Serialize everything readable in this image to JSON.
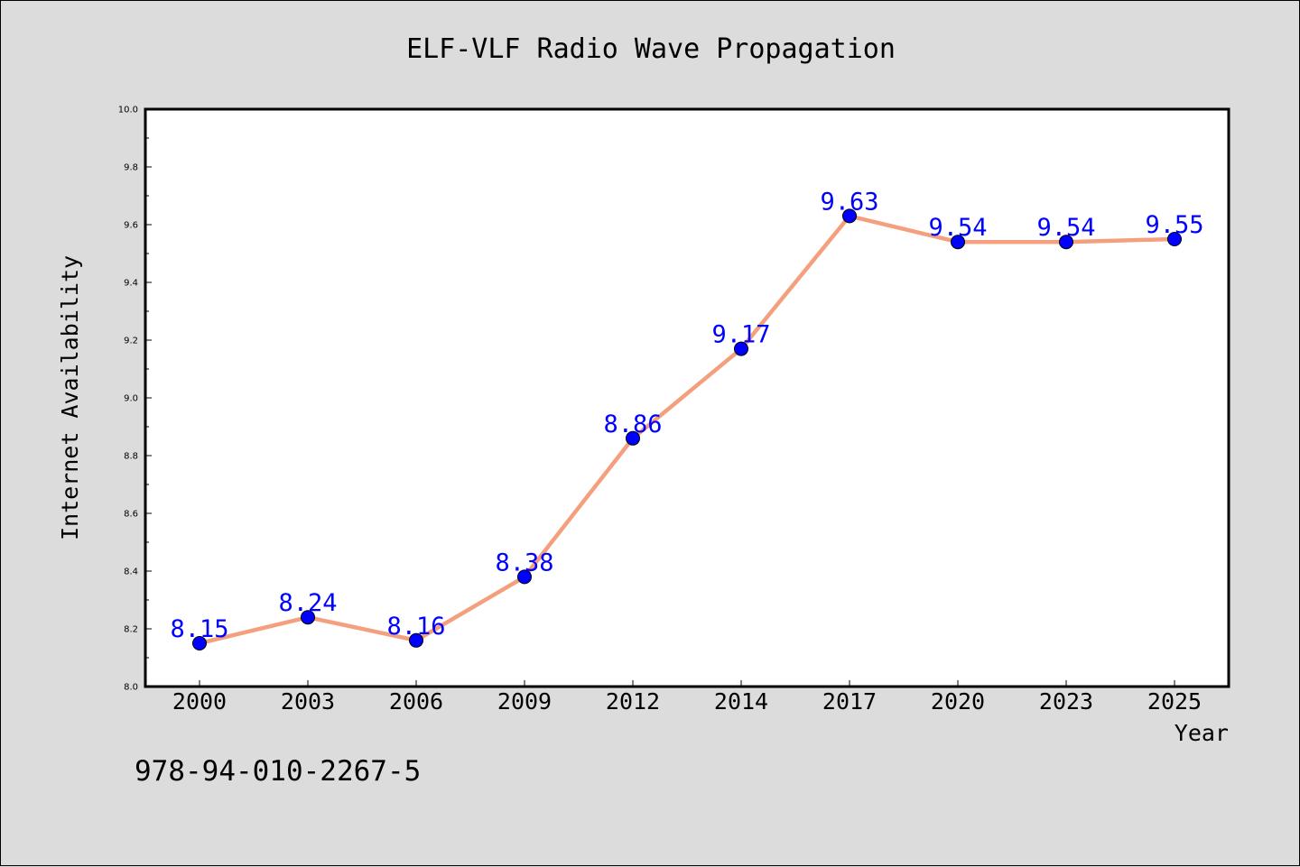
{
  "chart_data": {
    "type": "line",
    "title": "ELF-VLF Radio Wave Propagation",
    "xlabel": "Year",
    "ylabel": "Internet Availability",
    "categories": [
      "2000",
      "2003",
      "2006",
      "2009",
      "2012",
      "2014",
      "2017",
      "2020",
      "2023",
      "2025"
    ],
    "series": [
      {
        "values": [
          8.15,
          8.24,
          8.16,
          8.38,
          8.86,
          9.17,
          9.63,
          9.54,
          9.54,
          9.55
        ],
        "labels": [
          "8.15",
          "8.24",
          "8.16",
          "8.38",
          "8.86",
          "9.17",
          "9.63",
          "9.54",
          "9.54",
          "9.55"
        ],
        "line_color": "#f4a07e",
        "marker_color": "#0000ff"
      }
    ],
    "ylim": [
      8.0,
      10.0
    ],
    "yticks": [
      "8.0",
      "8.2",
      "8.4",
      "8.6",
      "8.8",
      "9.0",
      "9.2",
      "9.4",
      "9.6",
      "9.8",
      "10.0"
    ],
    "grid": false,
    "label_color": "#0000ff"
  },
  "footer": {
    "text": "978-94-010-2267-5"
  },
  "colors": {
    "figure_background": "#dcdcdc",
    "plot_background": "#ffffff"
  }
}
